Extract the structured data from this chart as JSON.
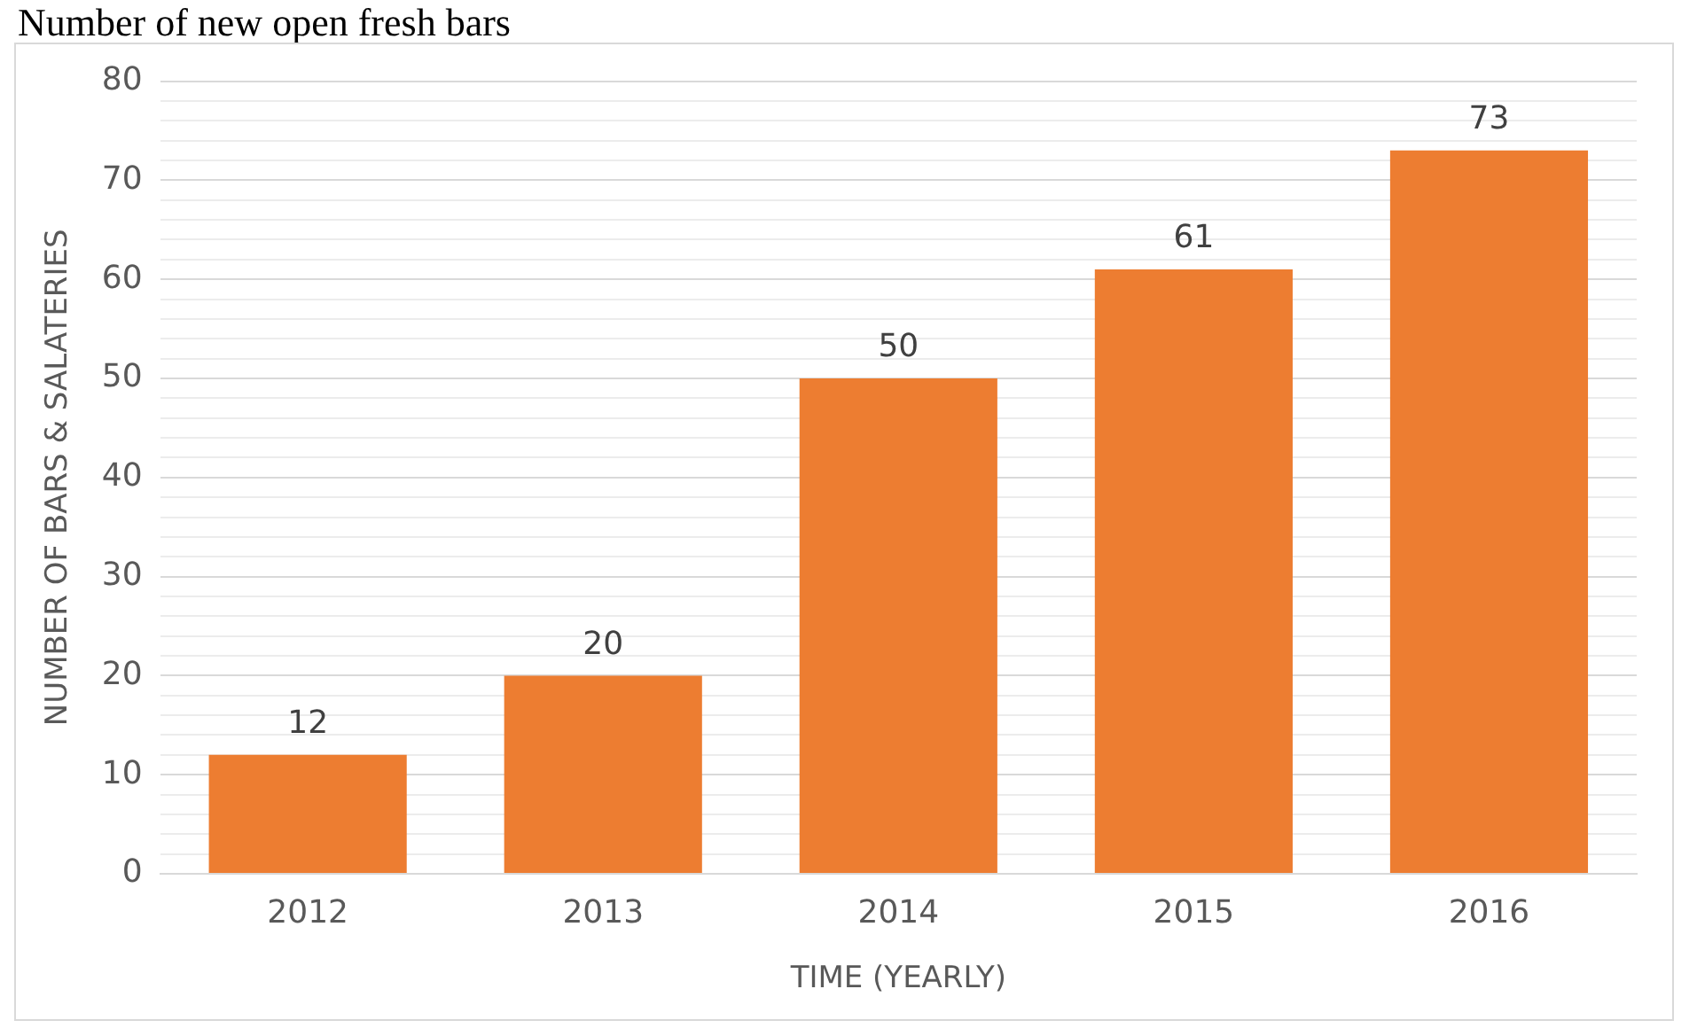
{
  "chart_data": {
    "type": "bar",
    "title": "Number of new open fresh bars",
    "xlabel": "TIME (YEARLY)",
    "ylabel": "NUMBER OF BARS & SALATERIES",
    "categories": [
      "2012",
      "2013",
      "2014",
      "2015",
      "2016"
    ],
    "values": [
      12,
      20,
      50,
      61,
      73
    ],
    "color": "#ed7d31",
    "ylim": [
      0,
      80
    ],
    "yticks": [
      0,
      {
        "value": 2,
        "label": null
      },
      {
        "value": 4,
        "label": null
      },
      {
        "value": 6,
        "label": null
      },
      {
        "value": 8,
        "label": null
      },
      10,
      {
        "value": 12,
        "label": null
      },
      {
        "value": 14,
        "label": null
      },
      {
        "value": 16,
        "label": null
      },
      {
        "value": 18,
        "label": null
      },
      20,
      {
        "value": 22,
        "label": null
      },
      {
        "value": 24,
        "label": null
      },
      {
        "value": 26,
        "label": null
      },
      {
        "value": 28,
        "label": null
      },
      30,
      {
        "value": 32,
        "label": null
      },
      {
        "value": 34,
        "label": null
      },
      {
        "value": 36,
        "label": null
      },
      {
        "value": 38,
        "label": null
      },
      40,
      {
        "value": 42,
        "label": null
      },
      {
        "value": 44,
        "label": null
      },
      {
        "value": 46,
        "label": null
      },
      {
        "value": 48,
        "label": null
      },
      50,
      {
        "value": 52,
        "label": null
      },
      {
        "value": 54,
        "label": null
      },
      {
        "value": 56,
        "label": null
      },
      {
        "value": 58,
        "label": null
      },
      60,
      {
        "value": 62,
        "label": null
      },
      {
        "value": 64,
        "label": null
      },
      {
        "value": 66,
        "label": null
      },
      {
        "value": 68,
        "label": null
      },
      70,
      {
        "value": 72,
        "label": null
      },
      {
        "value": 74,
        "label": null
      },
      {
        "value": 76,
        "label": null
      },
      {
        "value": 78,
        "label": null
      },
      80
    ],
    "grid": "y",
    "data_labels": true
  }
}
